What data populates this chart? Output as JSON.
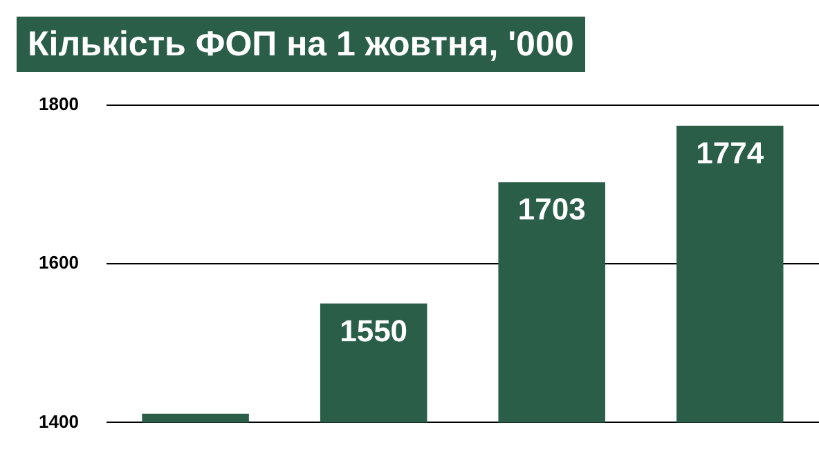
{
  "chart_data": {
    "type": "bar",
    "title": "Кількість ФОП на 1 жовтня, '000",
    "categories": [
      null,
      null,
      null,
      null
    ],
    "values": [
      1411,
      1550,
      1703,
      1774
    ],
    "value_labels": [
      null,
      "1550",
      "1703",
      "1774"
    ],
    "color": "#2a5e48",
    "ylim": [
      1400,
      1800
    ],
    "yticks": [
      1400,
      1600,
      1800
    ],
    "grid": "y",
    "legend": false,
    "tick_labels": "y"
  }
}
